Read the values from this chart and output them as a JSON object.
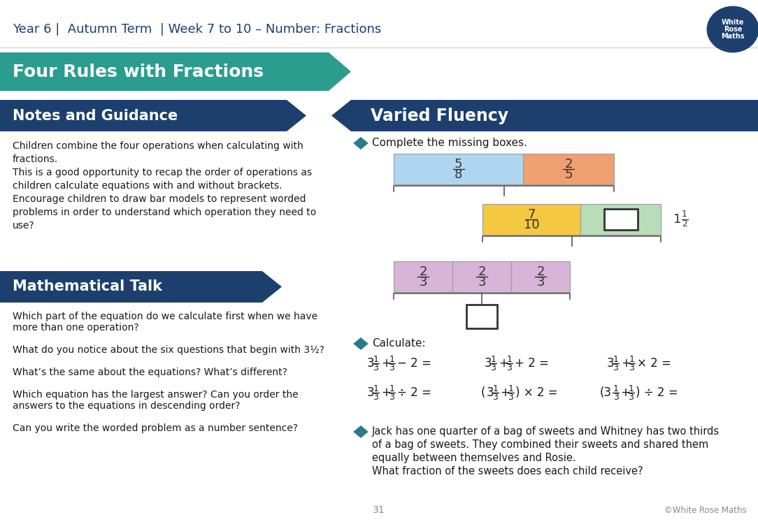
{
  "title_header": "Year 6 |  Autumn Term  | Week 7 to 10 – Number: Fractions",
  "teal_color": "#2a9d8f",
  "dark_navy": "#1c3f6e",
  "white": "#ffffff",
  "bg_color": "#ffffff",
  "section1_title": "Four Rules with Fractions",
  "section2_title": "Notes and Guidance",
  "section3_title": "Mathematical Talk",
  "section4_title": "Varied Fluency",
  "notes_text": [
    "Children combine the four operations when calculating with",
    "fractions.",
    "This is a good opportunity to recap the order of operations as",
    "children calculate equations with and without brackets.",
    "Encourage children to draw bar models to represent worded",
    "problems in order to understand which operation they need to",
    "use?"
  ],
  "math_talk_questions": [
    "Which part of the equation do we calculate first when we have",
    "more than one operation?",
    "",
    "What do you notice about the six questions that begin with 3½?",
    "",
    "What’s the same about the equations? What’s different?",
    "",
    "Which equation has the largest answer? Can you order the",
    "answers to the equations in descending order?",
    "",
    "Can you write the worded problem as a number sentence?"
  ],
  "word_problem": [
    "Jack has one quarter of a bag of sweets and Whitney has two thirds",
    "of a bag of sweets. They combined their sweets and shared them",
    "equally between themselves and Rosie.",
    "What fraction of the sweets does each child receive?"
  ],
  "page_number": "31"
}
